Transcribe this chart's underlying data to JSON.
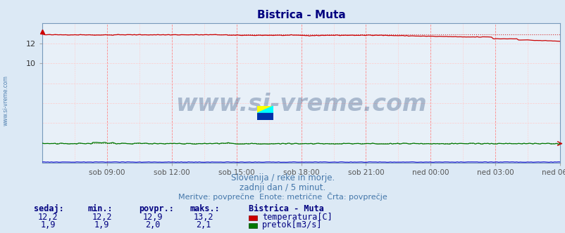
{
  "title": "Bistrica - Muta",
  "background_color": "#dce9f5",
  "plot_bg_color": "#e8f0f8",
  "x_ticks_labels": [
    "sob 09:00",
    "sob 12:00",
    "sob 15:00",
    "sob 18:00",
    "sob 21:00",
    "ned 00:00",
    "ned 03:00",
    "ned 06:00"
  ],
  "x_ticks_positions": [
    0.125,
    0.25,
    0.375,
    0.5,
    0.625,
    0.75,
    0.875,
    1.0
  ],
  "ylim_min": 0,
  "ylim_max": 14,
  "yticks": [
    2,
    4,
    6,
    8,
    10,
    12
  ],
  "ytick_labels": [
    "",
    "",
    "",
    "",
    "10",
    "12"
  ],
  "grid_color_v_major": "#ffaaaa",
  "grid_color_h": "#ffcccc",
  "temp_color": "#cc0000",
  "flow_color": "#007700",
  "height_color": "#0000cc",
  "watermark_text": "www.si-vreme.com",
  "watermark_color": "#1a3a6e",
  "watermark_alpha": 0.3,
  "subtitle1": "Slovenija / reke in morje.",
  "subtitle2": "zadnji dan / 5 minut.",
  "subtitle3": "Meritve: povprečne  Enote: metrične  Črta: povprečje",
  "subtitle_color": "#4477aa",
  "left_label_text": "www.si-vreme.com",
  "left_label_color": "#4477aa",
  "legend_title": "Bistrica - Muta",
  "legend_color": "#000080",
  "table_header": [
    "sedaj:",
    "min.:",
    "povpr.:",
    "maks.:"
  ],
  "table_color": "#000080",
  "temp_row": [
    "12,2",
    "12,2",
    "12,9",
    "13,2"
  ],
  "flow_row": [
    "1,9",
    "1,9",
    "2,0",
    "2,1"
  ],
  "temp_label": "temperatura[C]",
  "flow_label": "pretok[m3/s]",
  "n_points": 288,
  "temp_avg": 12.9,
  "flow_avg": 2.0,
  "temp_spike": 13.2,
  "temp_base_early": 12.85,
  "temp_base_mid": 12.78,
  "temp_base_late": 12.2,
  "flow_base": 1.95
}
